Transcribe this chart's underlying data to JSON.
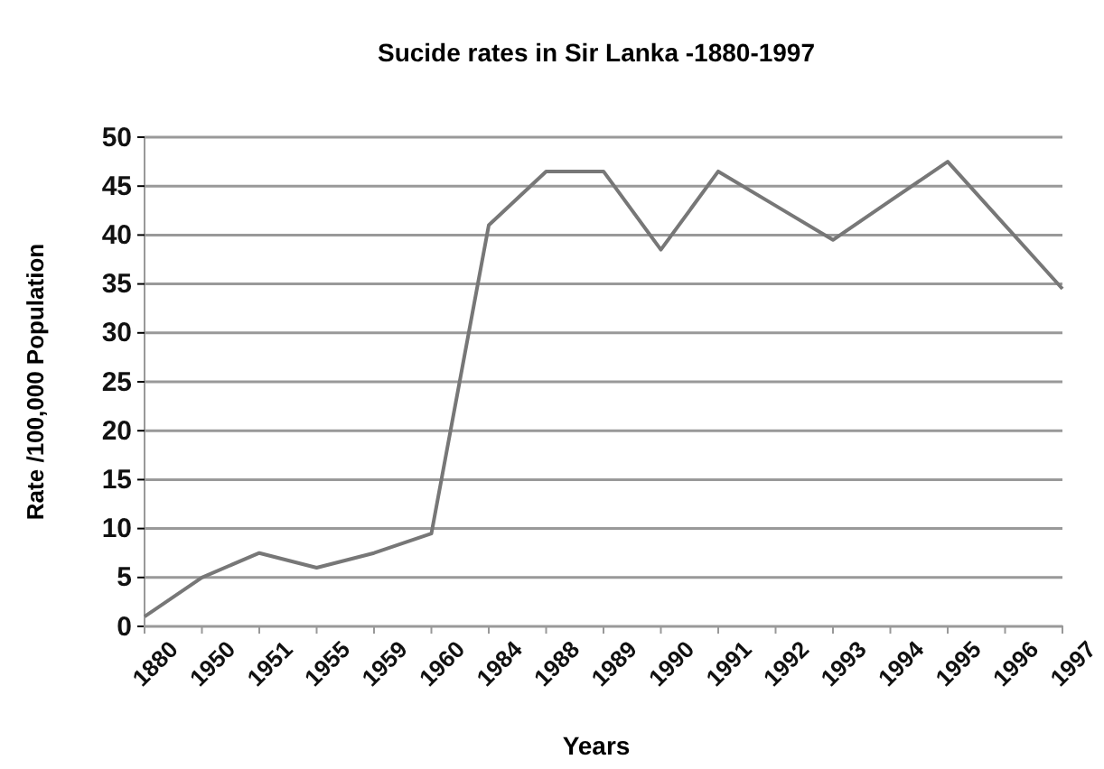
{
  "chart_data": {
    "type": "line",
    "title": "Sucide rates in Sir Lanka -1880-1997",
    "xlabel": "Years",
    "ylabel": "Rate /100,000 Population",
    "categories": [
      "1880",
      "1950",
      "1951",
      "1955",
      "1959",
      "1960",
      "1984",
      "1988",
      "1989",
      "1990",
      "1991",
      "1992",
      "1993",
      "1994",
      "1995",
      "1996",
      "1997"
    ],
    "series": [
      {
        "color": "#777777",
        "values": [
          1,
          5,
          7.5,
          6,
          7.5,
          9.5,
          41,
          46.5,
          46.5,
          38.5,
          46.5,
          43,
          39.5,
          43.5,
          47.5,
          41,
          34.5
        ]
      }
    ],
    "ylim": [
      0,
      50
    ],
    "yticks": [
      0,
      5,
      10,
      15,
      20,
      25,
      30,
      35,
      40,
      45,
      50
    ],
    "grid": "y",
    "marker": "none",
    "line_style": "solid"
  }
}
